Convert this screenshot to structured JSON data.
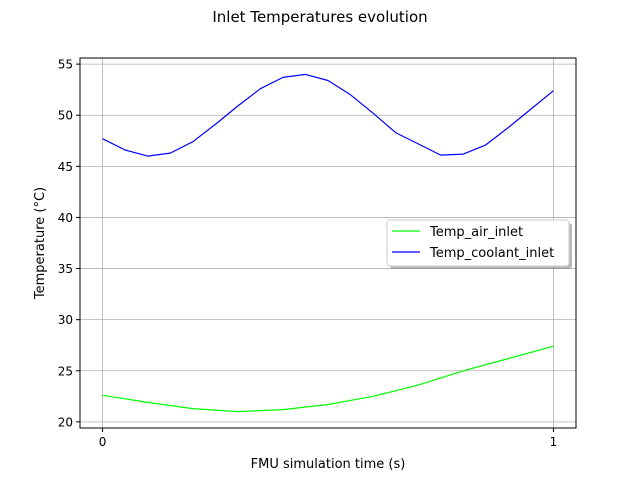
{
  "chart_data": {
    "type": "line",
    "title": "Inlet Temperatures evolution",
    "xlabel": "FMU simulation time (s)",
    "ylabel": "Temperature (°C)",
    "xlim": [
      -0.05,
      1.05
    ],
    "ylim": [
      19.4,
      55.6
    ],
    "xticks": [
      0,
      1
    ],
    "yticks": [
      20,
      25,
      30,
      35,
      40,
      45,
      50,
      55
    ],
    "grid": true,
    "legend_position": "center-right",
    "series": [
      {
        "name": "Temp_air_inlet",
        "color": "#00ff00",
        "x": [
          0,
          0.1,
          0.2,
          0.3,
          0.4,
          0.5,
          0.6,
          0.7,
          0.8,
          0.9,
          1.0
        ],
        "y": [
          22.6,
          21.9,
          21.3,
          21.0,
          21.2,
          21.7,
          22.5,
          23.6,
          25.0,
          26.2,
          27.4
        ]
      },
      {
        "name": "Temp_coolant_inlet",
        "color": "#0000ff",
        "x": [
          0,
          0.05,
          0.1,
          0.15,
          0.2,
          0.25,
          0.3,
          0.35,
          0.4,
          0.45,
          0.5,
          0.55,
          0.6,
          0.65,
          0.7,
          0.75,
          0.8,
          0.85,
          0.9,
          0.95,
          1.0
        ],
        "y": [
          47.7,
          46.6,
          46.0,
          46.3,
          47.4,
          49.1,
          50.9,
          52.6,
          53.7,
          54.0,
          53.4,
          52.0,
          50.2,
          48.3,
          47.2,
          46.1,
          46.2,
          47.1,
          48.8,
          50.6,
          52.4
        ]
      }
    ]
  }
}
